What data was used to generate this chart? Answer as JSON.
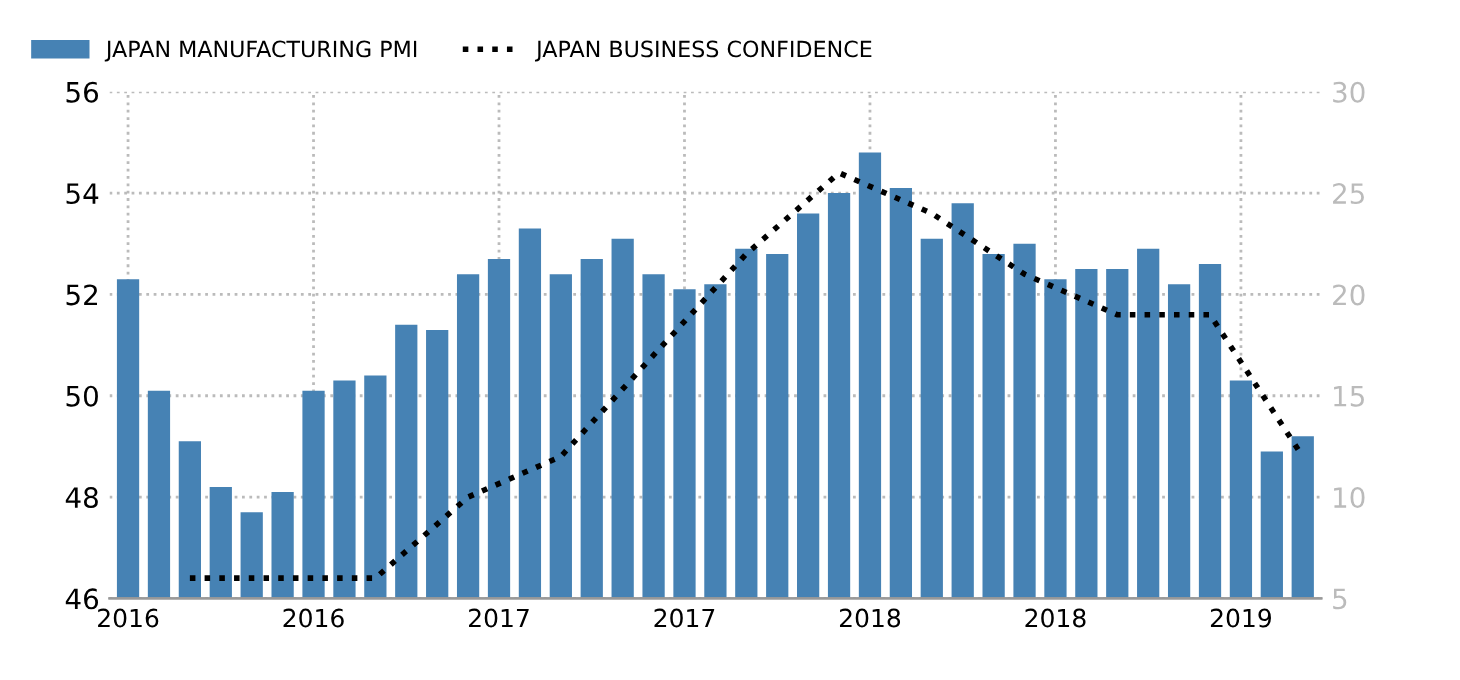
{
  "chart_data": {
    "type": "bar",
    "categories": [
      "2016",
      null,
      null,
      null,
      null,
      null,
      "2016",
      null,
      null,
      null,
      null,
      null,
      "2017",
      null,
      null,
      null,
      null,
      null,
      "2017",
      null,
      null,
      null,
      null,
      null,
      "2018",
      null,
      null,
      null,
      null,
      null,
      "2018",
      null,
      null,
      null,
      null,
      null,
      "2019",
      null,
      null
    ],
    "series": [
      {
        "name": "JAPAN MANUFACTURING PMI",
        "color": "#4682b4",
        "values": [
          52.3,
          50.1,
          49.1,
          48.2,
          47.7,
          48.1,
          50.1,
          50.3,
          50.4,
          51.4,
          51.3,
          52.4,
          52.7,
          53.3,
          52.4,
          52.7,
          53.1,
          52.4,
          52.1,
          52.2,
          52.9,
          52.8,
          53.6,
          54.0,
          54.8,
          54.1,
          53.1,
          53.8,
          52.8,
          53.0,
          52.3,
          52.5,
          52.5,
          52.9,
          52.2,
          52.6,
          50.3,
          48.9,
          49.2
        ]
      },
      {
        "name": "JAPAN BUSINESS CONFIDENCE",
        "type": "line",
        "axis": "y2",
        "color": "#000000",
        "line_style": "dotted",
        "values": [
          null,
          null,
          6,
          null,
          null,
          6,
          null,
          null,
          6,
          null,
          null,
          10,
          null,
          null,
          12,
          null,
          null,
          17,
          null,
          null,
          22,
          null,
          null,
          26,
          null,
          null,
          24,
          null,
          null,
          21,
          null,
          null,
          19,
          null,
          null,
          19,
          null,
          null,
          12
        ]
      }
    ],
    "ylim": [
      46,
      56
    ],
    "yticks": [
      46,
      48,
      50,
      52,
      54,
      56
    ],
    "y2lim": [
      5,
      30
    ],
    "y2ticks": [
      5,
      10,
      15,
      20,
      25,
      30
    ],
    "grid": true,
    "legend": "top left"
  }
}
